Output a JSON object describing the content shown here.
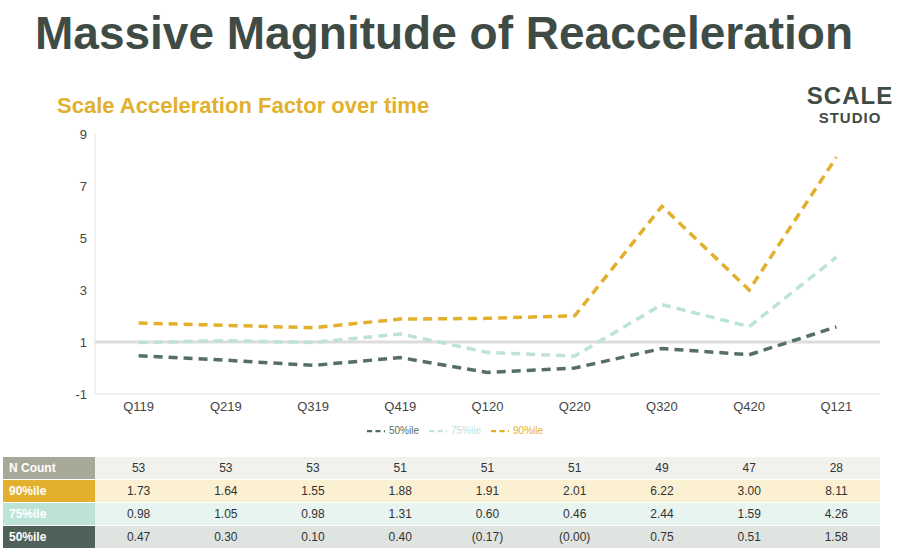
{
  "chart_data": {
    "type": "line",
    "title": "Massive Magnitude of Reacceleration",
    "subtitle": "Scale Acceleration Factor over time",
    "logo": [
      "SCALE",
      "STUDIO"
    ],
    "categories": [
      "Q119",
      "Q219",
      "Q319",
      "Q419",
      "Q120",
      "Q220",
      "Q320",
      "Q420",
      "Q121"
    ],
    "series": [
      {
        "name": "50%ile",
        "color": "#566f63",
        "line_style": "dashed",
        "values": [
          0.47,
          0.3,
          0.1,
          0.4,
          -0.17,
          0.0,
          0.75,
          0.51,
          1.58
        ]
      },
      {
        "name": "75%ile",
        "color": "#bde3d8",
        "line_style": "dashed",
        "values": [
          0.98,
          1.05,
          0.98,
          1.31,
          0.6,
          0.46,
          2.44,
          1.59,
          4.26
        ]
      },
      {
        "name": "90%ile",
        "color": "#e2b02c",
        "line_style": "dashed",
        "values": [
          1.73,
          1.64,
          1.55,
          1.88,
          1.91,
          2.01,
          6.22,
          3.0,
          8.11
        ]
      }
    ],
    "ylim": [
      -1,
      9
    ],
    "yticks": [
      -1,
      1,
      3,
      5,
      7,
      9
    ],
    "reference_line": 1,
    "grid": false,
    "legend": "bottom"
  },
  "table": {
    "rows": [
      {
        "label": "N Count",
        "cells": [
          "53",
          "53",
          "53",
          "51",
          "51",
          "51",
          "49",
          "47",
          "28"
        ]
      },
      {
        "label": "90%ile",
        "cells": [
          "1.73",
          "1.64",
          "1.55",
          "1.88",
          "1.91",
          "2.01",
          "6.22",
          "3.00",
          "8.11"
        ]
      },
      {
        "label": "75%ile",
        "cells": [
          "0.98",
          "1.05",
          "0.98",
          "1.31",
          "0.60",
          "0.46",
          "2.44",
          "1.59",
          "4.26"
        ]
      },
      {
        "label": "50%ile",
        "cells": [
          "0.47",
          "0.30",
          "0.10",
          "0.40",
          "(0.17)",
          "(0.00)",
          "0.75",
          "0.51",
          "1.58"
        ]
      }
    ]
  }
}
